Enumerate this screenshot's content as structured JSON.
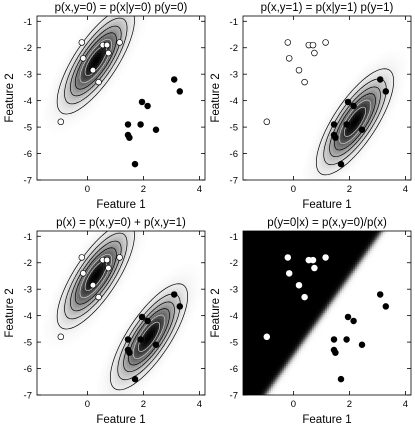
{
  "chart_data": [
    {
      "type": "contour",
      "title": "p(x,y=0) = p(x|y=0) p(y=0)",
      "xlabel": "Feature 1",
      "ylabel": "Feature 2",
      "xlim": [
        -1.8,
        4.2
      ],
      "ylim": [
        -7,
        -0.8
      ],
      "xticks": [
        0,
        2,
        4
      ],
      "yticks": [
        -1,
        -2,
        -3,
        -4,
        -5,
        -6,
        -7
      ],
      "show": [
        "c0"
      ],
      "points": [
        "c0",
        "c1"
      ],
      "shade": "gaussian"
    },
    {
      "type": "contour",
      "title": "p(x,y=1) = p(x|y=1) p(y=1)",
      "xlabel": "Feature 1",
      "ylabel": "Feature 2",
      "xlim": [
        -1.8,
        4.2
      ],
      "ylim": [
        -7,
        -0.8
      ],
      "xticks": [
        0,
        2,
        4
      ],
      "yticks": [
        -1,
        -2,
        -3,
        -4,
        -5,
        -6,
        -7
      ],
      "show": [
        "c1"
      ],
      "points": [
        "c0",
        "c1"
      ],
      "shade": "gaussian"
    },
    {
      "type": "contour",
      "title": "p(x) = p(x,y=0) + p(x,y=1)",
      "xlabel": "Feature 1",
      "ylabel": "Feature 2",
      "xlim": [
        -1.8,
        4.2
      ],
      "ylim": [
        -7,
        -0.8
      ],
      "xticks": [
        0,
        2,
        4
      ],
      "yticks": [
        -1,
        -2,
        -3,
        -4,
        -5,
        -6,
        -7
      ],
      "show": [
        "c0",
        "c1"
      ],
      "points": [
        "c0",
        "c1"
      ],
      "shade": "gaussian"
    },
    {
      "type": "heatmap",
      "title": "p(y=0|x) = p(x,y=0)/p(x)",
      "xlabel": "Feature 1",
      "ylabel": "Feature 2",
      "xlim": [
        -1.8,
        4.2
      ],
      "ylim": [
        -7,
        -0.8
      ],
      "xticks": [
        0,
        2,
        4
      ],
      "yticks": [
        -1,
        -2,
        -3,
        -4,
        -5,
        -6,
        -7
      ],
      "show": [
        "c0",
        "c1"
      ],
      "points": [
        "c0w",
        "c1w"
      ],
      "shade": "posterior"
    }
  ],
  "classes": {
    "c0": {
      "mean": [
        0.3,
        -2.5
      ],
      "cov": [
        [
          0.45,
          0.5
        ],
        [
          0.5,
          0.95
        ]
      ],
      "prior": 0.5
    },
    "c1": {
      "mean": [
        2.2,
        -4.8
      ],
      "cov": [
        [
          0.45,
          0.5
        ],
        [
          0.5,
          0.95
        ]
      ],
      "prior": 0.5
    }
  },
  "points": {
    "c0": {
      "fill": "#ffffff",
      "stroke": "#000000",
      "x": [
        -0.95,
        -0.2,
        -0.15,
        0.2,
        0.4,
        0.55,
        0.75,
        1.15,
        0.7
      ],
      "y": [
        -4.8,
        -1.8,
        -2.4,
        -2.85,
        -3.3,
        -1.9,
        -2.2,
        -1.8,
        -1.9
      ]
    },
    "c1": {
      "fill": "#000000",
      "stroke": "#000000",
      "x": [
        1.45,
        1.45,
        1.7,
        1.9,
        1.95,
        2.15,
        2.45,
        3.1,
        3.3,
        1.5
      ],
      "y": [
        -4.9,
        -5.3,
        -6.4,
        -4.9,
        -4.05,
        -4.2,
        -5.1,
        -3.2,
        -3.65,
        -5.4
      ]
    },
    "c0w": {
      "fill": "#ffffff",
      "stroke": "#ffffff",
      "x": [
        -0.95,
        -0.2,
        -0.15,
        0.2,
        0.4,
        0.55,
        0.75,
        1.15,
        0.7
      ],
      "y": [
        -4.8,
        -1.8,
        -2.4,
        -2.85,
        -3.3,
        -1.9,
        -2.2,
        -1.8,
        -1.9
      ]
    },
    "c1w": {
      "fill": "#000000",
      "stroke": "#000000",
      "x": [
        1.45,
        1.45,
        1.7,
        1.9,
        1.95,
        2.15,
        2.45,
        3.1,
        3.3,
        1.5
      ],
      "y": [
        -4.9,
        -5.3,
        -6.4,
        -4.9,
        -4.05,
        -4.2,
        -5.1,
        -3.2,
        -3.65,
        -5.4
      ]
    }
  },
  "contour_levels": [
    0.12,
    0.25,
    0.4,
    0.55,
    0.7,
    0.85
  ]
}
